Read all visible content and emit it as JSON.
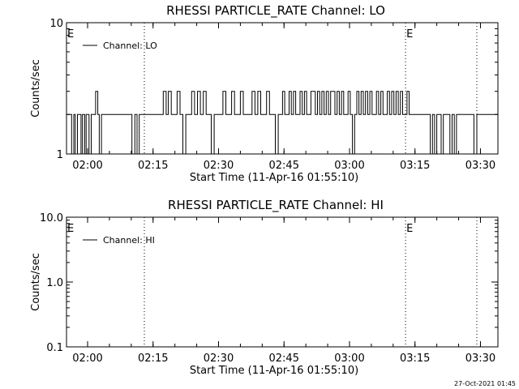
{
  "chart_data": [
    {
      "type": "line",
      "title": "RHESSI PARTICLE_RATE Channel: LO",
      "xlabel": "Start Time (11-Apr-16 01:55:10)",
      "ylabel": "Counts/sec",
      "yscale": "log",
      "ylim": [
        1,
        10
      ],
      "xlim": [
        "01:55:10",
        "03:34:00"
      ],
      "y_tick_labels": [
        "1",
        "10"
      ],
      "x_tick_labels": [
        "02:00",
        "02:15",
        "02:30",
        "02:45",
        "03:00",
        "03:15",
        "03:30"
      ],
      "legend": {
        "entries": [
          "Channel: LO"
        ],
        "placement": "top-left"
      },
      "grid": false,
      "event_markers": [
        {
          "time": "02:13:00",
          "label": "",
          "style": "dotted"
        },
        {
          "time": "03:12:50",
          "label": "E",
          "style": "dotted"
        },
        {
          "time": "03:29:10",
          "label": "",
          "style": "dotted"
        }
      ],
      "start_marker_label": "E",
      "series": [
        {
          "name": "Channel: LO",
          "x": [
            "01:55:10",
            "01:55:50",
            "01:56:20",
            "01:56:50",
            "01:57:10",
            "01:57:40",
            "01:58:00",
            "01:58:30",
            "01:58:50",
            "01:59:20",
            "01:59:40",
            "02:00:00",
            "02:00:20",
            "02:00:50",
            "02:01:10",
            "02:01:50",
            "02:02:20",
            "02:02:40",
            "02:03:10",
            "02:03:40",
            "02:04:00",
            "02:04:30",
            "02:05:00",
            "02:05:30",
            "02:06:00",
            "02:06:30",
            "02:10:10",
            "02:10:50",
            "02:11:20",
            "02:11:50",
            "02:12:10",
            "02:12:40",
            "02:16:00",
            "02:16:40",
            "02:17:20",
            "02:18:00",
            "02:18:30",
            "02:19:10",
            "02:19:50",
            "02:20:30",
            "02:21:10",
            "02:21:50",
            "02:22:30",
            "02:23:10",
            "02:23:50",
            "02:24:30",
            "02:25:10",
            "02:25:50",
            "02:26:30",
            "02:27:10",
            "02:27:40",
            "02:28:20",
            "02:29:00",
            "02:29:40",
            "02:30:20",
            "02:31:00",
            "02:31:40",
            "02:32:20",
            "02:33:00",
            "02:33:40",
            "02:34:20",
            "02:35:00",
            "02:35:40",
            "02:36:20",
            "02:37:00",
            "02:37:40",
            "02:38:20",
            "02:39:00",
            "02:39:40",
            "02:40:20",
            "02:41:00",
            "02:41:40",
            "02:42:20",
            "02:43:00",
            "02:43:40",
            "02:44:20",
            "02:44:40",
            "02:45:10",
            "02:45:40",
            "02:46:10",
            "02:46:40",
            "02:47:10",
            "02:47:40",
            "02:48:10",
            "02:48:40",
            "02:49:10",
            "02:49:40",
            "02:50:10",
            "02:50:40",
            "02:51:10",
            "02:51:40",
            "02:52:10",
            "02:52:40",
            "02:53:10",
            "02:53:40",
            "02:54:10",
            "02:54:40",
            "02:55:10",
            "02:55:40",
            "02:56:10",
            "02:56:40",
            "02:57:10",
            "02:57:40",
            "02:58:10",
            "02:58:40",
            "02:59:10",
            "02:59:40",
            "03:00:10",
            "03:00:40",
            "03:01:10",
            "03:01:40",
            "03:02:10",
            "03:02:40",
            "03:03:10",
            "03:03:40",
            "03:04:10",
            "03:04:40",
            "03:05:10",
            "03:05:40",
            "03:06:10",
            "03:06:40",
            "03:07:10",
            "03:07:40",
            "03:08:10",
            "03:08:40",
            "03:09:10",
            "03:09:40",
            "03:10:10",
            "03:10:40",
            "03:11:10",
            "03:11:40",
            "03:12:10",
            "03:12:40",
            "03:13:10",
            "03:13:40",
            "03:14:10",
            "03:15:30",
            "03:17:30",
            "03:18:00",
            "03:18:30",
            "03:19:00",
            "03:19:30",
            "03:20:00",
            "03:20:30",
            "03:21:00",
            "03:21:30",
            "03:22:00",
            "03:22:30",
            "03:23:00",
            "03:23:30",
            "03:24:00",
            "03:24:30",
            "03:25:00",
            "03:25:30",
            "03:26:00",
            "03:26:30",
            "03:27:00",
            "03:27:30",
            "03:28:00",
            "03:28:30",
            "03:29:10",
            "03:34:00"
          ],
          "values": [
            2,
            2,
            1,
            2,
            1,
            2,
            2,
            1,
            2,
            1,
            2,
            2,
            1,
            2,
            2,
            3,
            2,
            1,
            2,
            2,
            2,
            2,
            2,
            2,
            2,
            2,
            1,
            2,
            1,
            2,
            2,
            2,
            2,
            2,
            3,
            2,
            3,
            2,
            2,
            3,
            2,
            1,
            2,
            2,
            3,
            2,
            3,
            2,
            3,
            2,
            2,
            1,
            2,
            2,
            2,
            3,
            2,
            2,
            3,
            2,
            2,
            3,
            2,
            2,
            2,
            3,
            2,
            3,
            2,
            2,
            3,
            2,
            2,
            1,
            2,
            2,
            3,
            2,
            2,
            3,
            2,
            3,
            2,
            2,
            3,
            2,
            3,
            2,
            2,
            3,
            3,
            2,
            3,
            2,
            3,
            2,
            3,
            2,
            3,
            3,
            2,
            3,
            2,
            3,
            2,
            2,
            3,
            2,
            1,
            2,
            3,
            2,
            3,
            2,
            3,
            2,
            3,
            2,
            2,
            3,
            2,
            3,
            2,
            2,
            3,
            2,
            3,
            2,
            3,
            2,
            3,
            2,
            2,
            3,
            2,
            2,
            2,
            2,
            2,
            1,
            2,
            1,
            2,
            2,
            1,
            2,
            2,
            2,
            1,
            2,
            1,
            2,
            2,
            2,
            2,
            2,
            2,
            2,
            2,
            1,
            2,
            2
          ]
        }
      ]
    },
    {
      "type": "line",
      "title": "RHESSI PARTICLE_RATE Channel: HI",
      "xlabel": "Start Time (11-Apr-16 01:55:10)",
      "ylabel": "Counts/sec",
      "yscale": "log",
      "ylim": [
        0.1,
        10
      ],
      "xlim": [
        "01:55:10",
        "03:34:00"
      ],
      "y_tick_labels": [
        "0.1",
        "1.0",
        "10.0"
      ],
      "x_tick_labels": [
        "02:00",
        "02:15",
        "02:30",
        "02:45",
        "03:00",
        "03:15",
        "03:30"
      ],
      "legend": {
        "entries": [
          "Channel: HI"
        ],
        "placement": "top-left"
      },
      "grid": false,
      "event_markers": [
        {
          "time": "02:13:00",
          "label": "",
          "style": "dotted"
        },
        {
          "time": "03:12:50",
          "label": "E",
          "style": "dotted"
        },
        {
          "time": "03:29:10",
          "label": "",
          "style": "dotted"
        }
      ],
      "start_marker_label": "E",
      "series": [
        {
          "name": "Channel: HI",
          "x": [],
          "values": []
        }
      ]
    }
  ],
  "footer": {
    "timestamp": "27-Oct-2021 01:45"
  },
  "colors": {
    "background": "#ffffff",
    "foreground": "#000000"
  }
}
